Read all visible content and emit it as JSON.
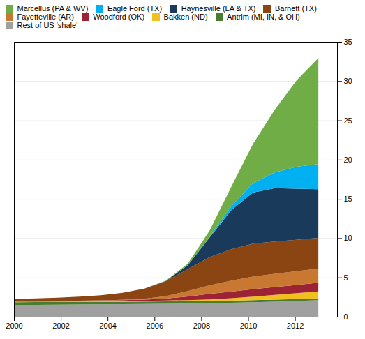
{
  "chart_data": {
    "type": "area",
    "stacked": true,
    "x": [
      2000,
      2000.93,
      2001.86,
      2002.79,
      2003.71,
      2004.64,
      2005.57,
      2006.5,
      2007.43,
      2008.36,
      2009.29,
      2010.21,
      2011.14,
      2012.07,
      2013.0
    ],
    "series": [
      {
        "name": "Marcellus (PA & WV)",
        "color": "#70ad47",
        "values": [
          0.0,
          0.0,
          0.0,
          0.0,
          0.0,
          0.0,
          0.0,
          0.05,
          0.2,
          0.8,
          2.5,
          5.0,
          8.0,
          11.0,
          13.5
        ]
      },
      {
        "name": "Eagle Ford (TX)",
        "color": "#00b0f0",
        "values": [
          0.0,
          0.0,
          0.0,
          0.0,
          0.0,
          0.0,
          0.0,
          0.0,
          0.0,
          0.1,
          0.5,
          1.2,
          2.0,
          2.8,
          3.2
        ]
      },
      {
        "name": "Haynesville (LA & TX)",
        "color": "#1a3a5c",
        "values": [
          0.0,
          0.0,
          0.0,
          0.0,
          0.0,
          0.0,
          0.0,
          0.05,
          0.5,
          2.5,
          5.0,
          6.5,
          6.8,
          6.5,
          6.2
        ]
      },
      {
        "name": "Barnett (TX)",
        "color": "#8b4513",
        "values": [
          0.3,
          0.35,
          0.4,
          0.5,
          0.65,
          0.9,
          1.3,
          1.9,
          2.8,
          3.6,
          4.0,
          4.2,
          4.1,
          4.0,
          3.9
        ]
      },
      {
        "name": "Fayetteville (AR)",
        "color": "#c87830",
        "values": [
          0.02,
          0.02,
          0.02,
          0.02,
          0.03,
          0.05,
          0.1,
          0.3,
          0.7,
          1.1,
          1.4,
          1.6,
          1.7,
          1.75,
          1.8
        ]
      },
      {
        "name": "Woodford (OK)",
        "color": "#9b2335",
        "values": [
          0.05,
          0.05,
          0.06,
          0.07,
          0.08,
          0.1,
          0.15,
          0.25,
          0.45,
          0.7,
          0.85,
          0.95,
          1.0,
          1.05,
          1.1
        ]
      },
      {
        "name": "Bakken (ND)",
        "color": "#f0c020",
        "values": [
          0.05,
          0.05,
          0.05,
          0.06,
          0.07,
          0.08,
          0.1,
          0.12,
          0.15,
          0.2,
          0.3,
          0.45,
          0.6,
          0.75,
          0.9
        ]
      },
      {
        "name": "Antrim (MI, IN, & OH)",
        "color": "#4a7c2f",
        "values": [
          0.35,
          0.35,
          0.35,
          0.34,
          0.33,
          0.32,
          0.31,
          0.3,
          0.29,
          0.28,
          0.27,
          0.26,
          0.25,
          0.24,
          0.23
        ]
      },
      {
        "name": "Rest of US 'shale'",
        "color": "#a0a0a0",
        "values": [
          1.5,
          1.52,
          1.54,
          1.56,
          1.58,
          1.6,
          1.62,
          1.65,
          1.68,
          1.72,
          1.78,
          1.85,
          1.92,
          2.0,
          2.1
        ]
      }
    ],
    "xlim": [
      2000,
      2013.8
    ],
    "xticks": [
      2000,
      2002,
      2004,
      2006,
      2008,
      2010,
      2012
    ],
    "ylim": [
      0,
      35
    ],
    "yticks": [
      0,
      5,
      10,
      15,
      20,
      25,
      30,
      35
    ],
    "grid": true,
    "legend": "upper left"
  }
}
